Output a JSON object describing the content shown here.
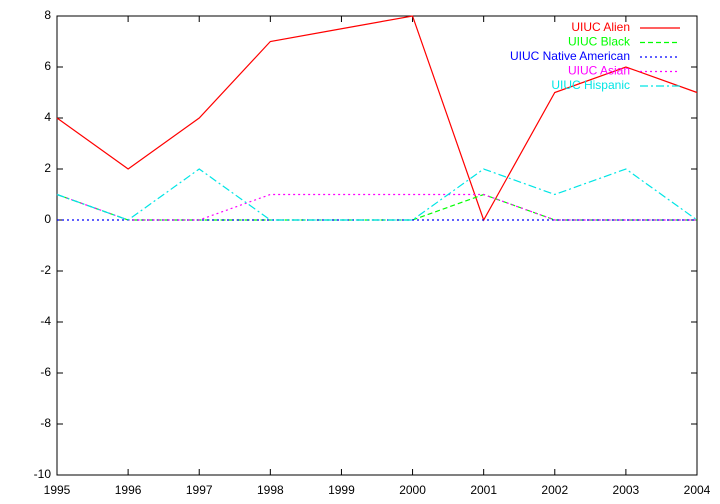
{
  "chart_data": {
    "type": "line",
    "x": [
      1995,
      1996,
      1997,
      1998,
      1999,
      2000,
      2001,
      2002,
      2003,
      2004
    ],
    "series": [
      {
        "name": "UIUC Alien",
        "color": "#ff0000",
        "dash": "solid",
        "values": [
          4,
          2,
          4,
          7,
          7.5,
          8,
          0,
          5,
          6,
          5
        ]
      },
      {
        "name": "UIUC Black",
        "color": "#00ff00",
        "dash": "dashed",
        "values": [
          1,
          0,
          0,
          0,
          0,
          0,
          1,
          0,
          0,
          0
        ]
      },
      {
        "name": "UIUC Native American",
        "color": "#0000ff",
        "dash": "dotted",
        "values": [
          0,
          0,
          0,
          0,
          0,
          0,
          0,
          0,
          0,
          0
        ]
      },
      {
        "name": "UIUC Asian",
        "color": "#ff00ff",
        "dash": "dotted",
        "values": [
          1,
          0,
          0,
          1,
          1,
          1,
          1,
          0,
          0,
          0
        ]
      },
      {
        "name": "UIUC Hispanic",
        "color": "#00e5e5",
        "dash": "dashdot",
        "values": [
          1,
          0,
          2,
          0,
          0,
          0,
          2,
          1,
          2,
          0
        ]
      }
    ],
    "xlim": [
      1995,
      2004
    ],
    "xticks": [
      1995,
      1996,
      1997,
      1998,
      1999,
      2000,
      2001,
      2002,
      2003,
      2004
    ],
    "ylim": [
      -10,
      8
    ],
    "yticks": [
      -10,
      -8,
      -6,
      -4,
      -2,
      0,
      2,
      4,
      6,
      8
    ],
    "grid": false,
    "legend": "top-right"
  }
}
